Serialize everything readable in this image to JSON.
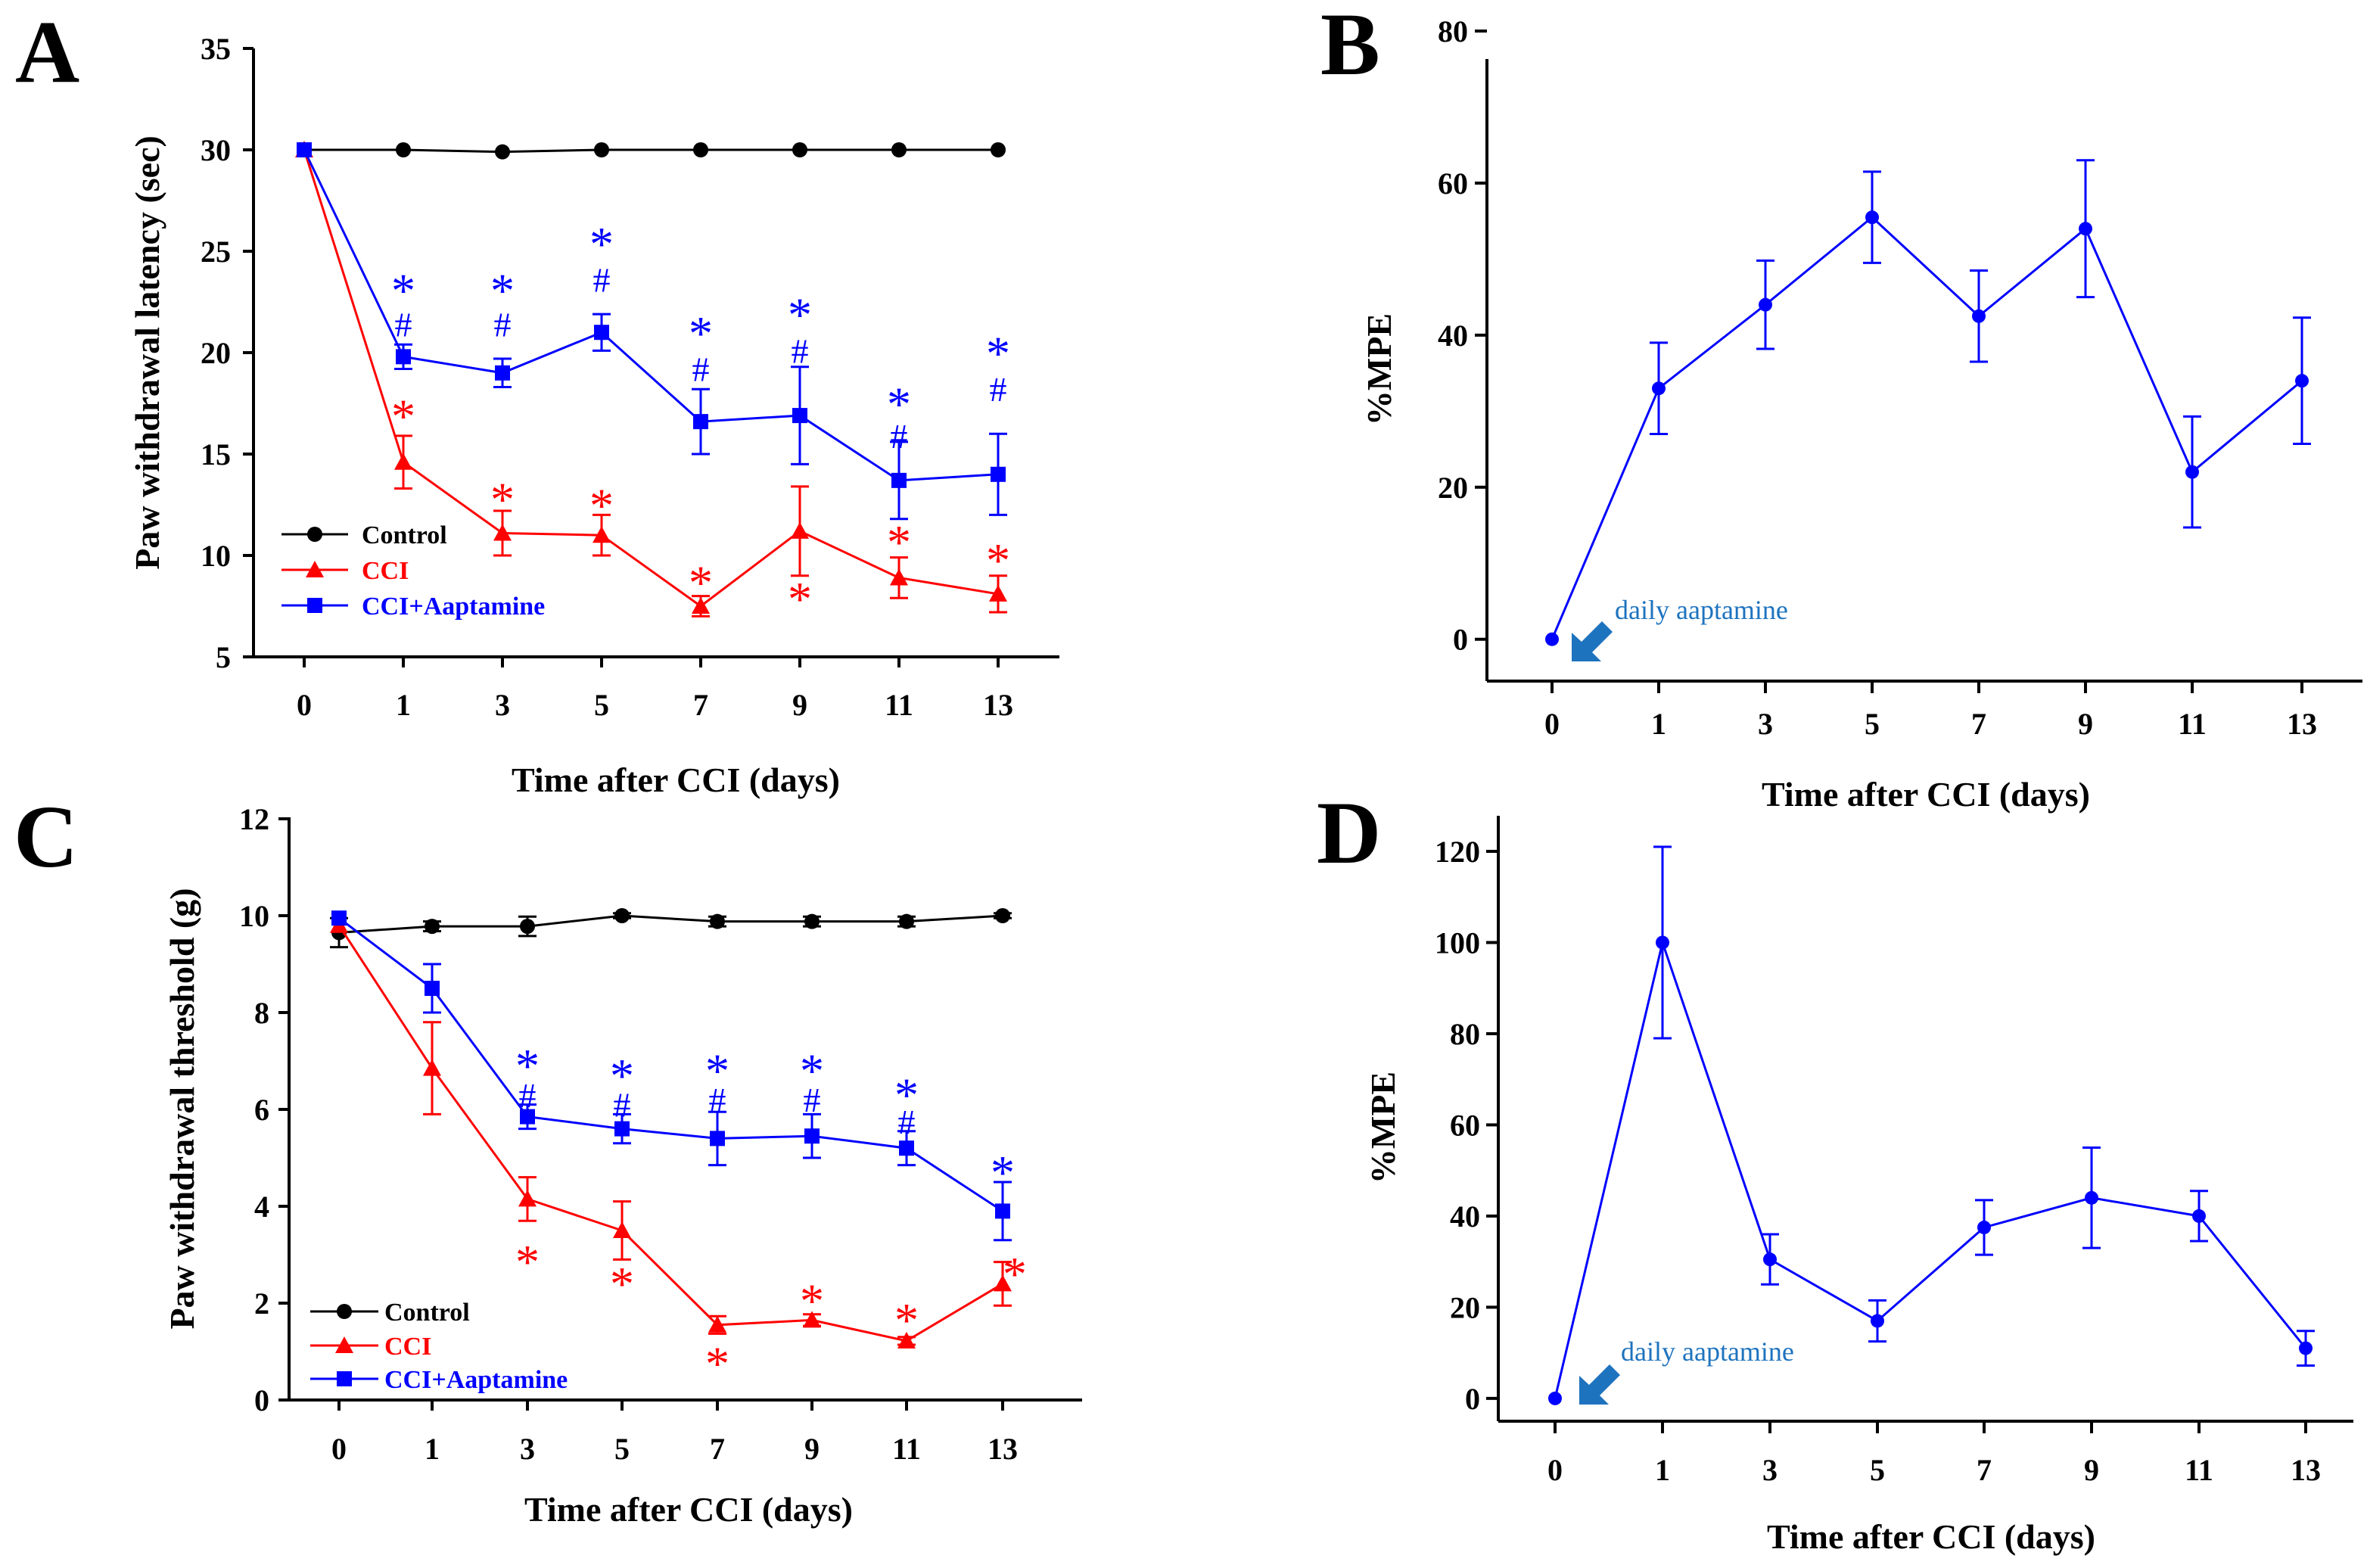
{
  "figure": {
    "colors": {
      "control": "#000000",
      "cci": "#ff0000",
      "aaptamine": "#0000ff",
      "annotation": "#1e73be",
      "axis": "#000000"
    }
  },
  "chart_data": [
    {
      "panel": "A",
      "type": "line",
      "title": "",
      "xlabel": "Time after CCI (days)",
      "ylabel": "Paw withdrawal latency (sec)",
      "x": [
        0,
        1,
        3,
        5,
        7,
        9,
        11,
        13
      ],
      "x_tick_labels": [
        "0",
        "1",
        "3",
        "5",
        "7",
        "9",
        "11",
        "13"
      ],
      "y_ticks": [
        5,
        10,
        15,
        20,
        25,
        30,
        35
      ],
      "ylim": [
        5,
        35
      ],
      "legend": {
        "placement": "lower-left",
        "entries": [
          "Control",
          "CCI",
          "CCI+Aaptamine"
        ]
      },
      "series": [
        {
          "name": "Control",
          "color": "#000000",
          "marker": "circle",
          "values": [
            30,
            30,
            29.9,
            30,
            30,
            30,
            30,
            30
          ],
          "errors": [
            0,
            0,
            0,
            0,
            0,
            0,
            0,
            0
          ]
        },
        {
          "name": "CCI",
          "color": "#ff0000",
          "marker": "triangle",
          "values": [
            30,
            14.6,
            11.1,
            11.0,
            7.5,
            11.2,
            8.9,
            8.1
          ],
          "errors": [
            0,
            1.3,
            1.1,
            1.0,
            0.5,
            2.2,
            1.0,
            0.9
          ]
        },
        {
          "name": "CCI+Aaptamine",
          "color": "#0000ff",
          "marker": "square",
          "values": [
            30,
            19.8,
            19.0,
            21.0,
            16.6,
            16.9,
            13.7,
            14.0
          ],
          "errors": [
            0,
            0.6,
            0.7,
            0.9,
            1.6,
            2.4,
            1.9,
            2.0
          ]
        }
      ],
      "annotations": [
        {
          "text": "*",
          "color": "#ff0000",
          "x": 1,
          "y": 17.1
        },
        {
          "text": "*",
          "color": "#ff0000",
          "x": 3,
          "y": 13.0
        },
        {
          "text": "*",
          "color": "#ff0000",
          "x": 5,
          "y": 12.7
        },
        {
          "text": "*",
          "color": "#ff0000",
          "x": 7,
          "y": 8.9
        },
        {
          "text": "*",
          "color": "#ff0000",
          "x": 9,
          "y": 8.1
        },
        {
          "text": "*",
          "color": "#ff0000",
          "x": 11,
          "y": 10.9
        },
        {
          "text": "*",
          "color": "#ff0000",
          "x": 13,
          "y": 10.0
        },
        {
          "text": "*",
          "color": "#0000ff",
          "x": 1,
          "y": 23.3
        },
        {
          "text": "#",
          "color": "#0000ff",
          "x": 1,
          "y": 21.4
        },
        {
          "text": "*",
          "color": "#0000ff",
          "x": 3,
          "y": 23.3
        },
        {
          "text": "#",
          "color": "#0000ff",
          "x": 3,
          "y": 21.4
        },
        {
          "text": "*",
          "color": "#0000ff",
          "x": 5,
          "y": 25.6
        },
        {
          "text": "#",
          "color": "#0000ff",
          "x": 5,
          "y": 23.6
        },
        {
          "text": "*",
          "color": "#0000ff",
          "x": 7,
          "y": 21.2
        },
        {
          "text": "#",
          "color": "#0000ff",
          "x": 7,
          "y": 19.2
        },
        {
          "text": "*",
          "color": "#0000ff",
          "x": 9,
          "y": 22.1
        },
        {
          "text": "#",
          "color": "#0000ff",
          "x": 9,
          "y": 20.1
        },
        {
          "text": "*",
          "color": "#0000ff",
          "x": 11,
          "y": 17.7
        },
        {
          "text": "#",
          "color": "#0000ff",
          "x": 11,
          "y": 15.9
        },
        {
          "text": "*",
          "color": "#0000ff",
          "x": 13,
          "y": 20.2
        },
        {
          "text": "#",
          "color": "#0000ff",
          "x": 13,
          "y": 18.2
        }
      ]
    },
    {
      "panel": "B",
      "type": "line",
      "title": "",
      "xlabel": "Time after CCI (days)",
      "ylabel": "%MPE",
      "x": [
        0,
        1,
        3,
        5,
        7,
        9,
        11,
        13
      ],
      "x_tick_labels": [
        "0",
        "1",
        "3",
        "5",
        "7",
        "9",
        "11",
        "13"
      ],
      "y_ticks": [
        0,
        20,
        40,
        60,
        80
      ],
      "ylim": [
        -5.5,
        80
      ],
      "series": [
        {
          "name": "CCI+Aaptamine",
          "color": "#0000ff",
          "marker": "circle",
          "values": [
            0,
            33,
            44,
            55.5,
            42.5,
            54,
            22,
            34
          ],
          "errors": [
            0,
            6,
            5.8,
            6,
            6,
            9,
            7.3,
            8.3
          ]
        }
      ],
      "annotations": [
        {
          "text": "daily aaptamine",
          "type": "arrow-note",
          "color": "#1e73be",
          "x": 0,
          "y": 0
        }
      ]
    },
    {
      "panel": "C",
      "type": "line",
      "title": "",
      "xlabel": "Time after CCI (days)",
      "ylabel": "Paw withdrawal threshold (g)",
      "x": [
        0,
        1,
        3,
        5,
        7,
        9,
        11,
        13
      ],
      "x_tick_labels": [
        "0",
        "1",
        "3",
        "5",
        "7",
        "9",
        "11",
        "13"
      ],
      "y_ticks": [
        0,
        2,
        4,
        6,
        8,
        10,
        12
      ],
      "ylim": [
        0,
        12
      ],
      "legend": {
        "placement": "lower-left",
        "entries": [
          "Control",
          "CCI",
          "CCI+Aaptamine"
        ]
      },
      "series": [
        {
          "name": "Control",
          "color": "#000000",
          "marker": "circle",
          "values": [
            9.65,
            9.78,
            9.78,
            10.0,
            9.88,
            9.88,
            9.88,
            10.0
          ],
          "errors": [
            0.3,
            0.1,
            0.2,
            0.05,
            0.1,
            0.1,
            0.1,
            0.05
          ]
        },
        {
          "name": "CCI",
          "color": "#ff0000",
          "marker": "triangle",
          "values": [
            9.8,
            6.85,
            4.15,
            3.5,
            1.55,
            1.65,
            1.22,
            2.4
          ],
          "errors": [
            0,
            0.95,
            0.45,
            0.6,
            0.18,
            0.12,
            0.08,
            0.45
          ]
        },
        {
          "name": "CCI+Aaptamine",
          "color": "#0000ff",
          "marker": "square",
          "values": [
            9.95,
            8.5,
            5.85,
            5.6,
            5.4,
            5.45,
            5.2,
            3.9
          ],
          "errors": [
            0,
            0.5,
            0.25,
            0.3,
            0.55,
            0.45,
            0.35,
            0.6
          ]
        }
      ],
      "annotations": [
        {
          "text": "*",
          "color": "#ff0000",
          "x": 3,
          "y": 2.95
        },
        {
          "text": "*",
          "color": "#ff0000",
          "x": 5,
          "y": 2.5
        },
        {
          "text": "*",
          "color": "#ff0000",
          "x": 7,
          "y": 0.85
        },
        {
          "text": "*",
          "color": "#ff0000",
          "x": 9,
          "y": 2.15
        },
        {
          "text": "*",
          "color": "#ff0000",
          "x": 11,
          "y": 1.75
        },
        {
          "text": "*",
          "color": "#ff0000",
          "x": 13.25,
          "y": 2.7
        },
        {
          "text": "*",
          "color": "#0000ff",
          "x": 3,
          "y": 7.0
        },
        {
          "text": "#",
          "color": "#0000ff",
          "x": 3,
          "y": 6.3
        },
        {
          "text": "*",
          "color": "#0000ff",
          "x": 5,
          "y": 6.8
        },
        {
          "text": "#",
          "color": "#0000ff",
          "x": 5,
          "y": 6.1
        },
        {
          "text": "*",
          "color": "#0000ff",
          "x": 7,
          "y": 6.9
        },
        {
          "text": "#",
          "color": "#0000ff",
          "x": 7,
          "y": 6.2
        },
        {
          "text": "*",
          "color": "#0000ff",
          "x": 9,
          "y": 6.9
        },
        {
          "text": "#",
          "color": "#0000ff",
          "x": 9,
          "y": 6.2
        },
        {
          "text": "*",
          "color": "#0000ff",
          "x": 11,
          "y": 6.4
        },
        {
          "text": "#",
          "color": "#0000ff",
          "x": 11,
          "y": 5.75
        },
        {
          "text": "*",
          "color": "#0000ff",
          "x": 13,
          "y": 4.8
        }
      ]
    },
    {
      "panel": "D",
      "type": "line",
      "title": "",
      "xlabel": "Time after CCI (days)",
      "ylabel": "%MPE",
      "x": [
        0,
        1,
        3,
        5,
        7,
        9,
        11,
        13
      ],
      "x_tick_labels": [
        "0",
        "1",
        "3",
        "5",
        "7",
        "9",
        "11",
        "13"
      ],
      "y_ticks": [
        0,
        20,
        40,
        60,
        80,
        100,
        120
      ],
      "ylim": [
        -5,
        130
      ],
      "series": [
        {
          "name": "CCI+Aaptamine",
          "color": "#0000ff",
          "marker": "circle",
          "values": [
            0,
            100,
            30.5,
            17,
            37.5,
            44,
            40,
            11
          ],
          "errors": [
            0,
            21,
            5.5,
            4.5,
            6,
            11,
            5.5,
            3.8
          ]
        }
      ],
      "annotations": [
        {
          "text": "daily aaptamine",
          "type": "arrow-note",
          "color": "#1e73be",
          "x": 0,
          "y": 0
        }
      ]
    }
  ]
}
